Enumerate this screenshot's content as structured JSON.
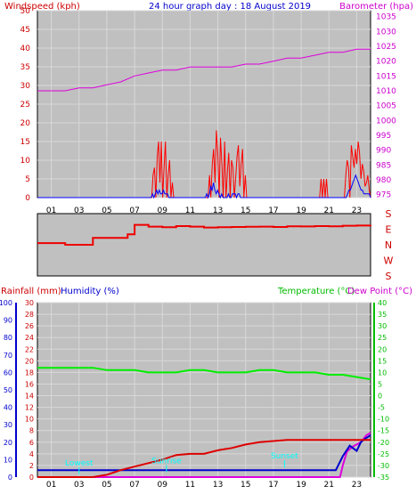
{
  "colors": {
    "plot_bg": "#c0c0c0",
    "grid": "#d8d8d8",
    "wind_speed": "#ff0000",
    "wind_gust": "#0000ff",
    "barometer": "#dd00dd",
    "direction": "#ee0000",
    "temperature": "#00ee00",
    "dew_point": "#dd00dd",
    "rainfall": "#dd0000",
    "humidity": "#0000cc",
    "event": "#00ffff",
    "axis_red": "#cc0000",
    "axis_blue": "#0000cc",
    "axis_purple": "#cc00cc",
    "axis_green": "#00bb00"
  },
  "chart_data": [
    {
      "type": "line",
      "title": "24 hour graph day : 18 August 2019",
      "left_label": "Windspeed (kph)",
      "right_label": "Barometer (hpa)",
      "x_ticks": [
        "01",
        "03",
        "05",
        "07",
        "09",
        "11",
        "13",
        "15",
        "17",
        "19",
        "21",
        "23"
      ],
      "left_ticks": [
        "0",
        "5",
        "10",
        "15",
        "20",
        "25",
        "30",
        "35",
        "40",
        "45",
        "50"
      ],
      "right_ticks": [
        "975",
        "980",
        "985",
        "990",
        "995",
        "1000",
        "1005",
        "1010",
        "1015",
        "1020",
        "1025",
        "1030",
        "1035"
      ],
      "left_lim": [
        0,
        50
      ],
      "right_lim": [
        974,
        1037
      ],
      "hours": [
        0,
        1,
        2,
        3,
        4,
        5,
        6,
        7,
        8,
        9,
        10,
        11,
        12,
        13,
        14,
        15,
        16,
        17,
        18,
        19,
        20,
        21,
        22,
        23,
        24
      ],
      "barometer": [
        1010,
        1010,
        1010,
        1011,
        1011,
        1012,
        1013,
        1015,
        1016,
        1017,
        1017,
        1018,
        1018,
        1018,
        1018,
        1019,
        1019,
        1020,
        1021,
        1021,
        1022,
        1023,
        1023,
        1024,
        1024
      ],
      "wind_speed": [
        0,
        0,
        0,
        0,
        0,
        0,
        0,
        0,
        0,
        0,
        0,
        0,
        0,
        0,
        0,
        0,
        0,
        0,
        0,
        0,
        0,
        0,
        0,
        0,
        0,
        0,
        0,
        0,
        0,
        0,
        0,
        0,
        0,
        0,
        0,
        0,
        0,
        0,
        0,
        0,
        0,
        0,
        0,
        0,
        0,
        0,
        0,
        0,
        0,
        0,
        0,
        0,
        0,
        0,
        0,
        0,
        0,
        0,
        0,
        0,
        0,
        0,
        0,
        0,
        0,
        0,
        0,
        0,
        0,
        0,
        0,
        0,
        0,
        0,
        0,
        0,
        0,
        0,
        0,
        0,
        0,
        0,
        0,
        0,
        6,
        8,
        0,
        11,
        15,
        4,
        15,
        0,
        8,
        15,
        0,
        6,
        10,
        0,
        4,
        0,
        0,
        0,
        0,
        0,
        0,
        0,
        0,
        0,
        0,
        0,
        0,
        0,
        0,
        0,
        0,
        0,
        0,
        0,
        0,
        0,
        0,
        0,
        0,
        0,
        0,
        6,
        0,
        9,
        13,
        4,
        18,
        12,
        0,
        16,
        9,
        0,
        15,
        0,
        7,
        12,
        0,
        10,
        8,
        0,
        5,
        11,
        14,
        3,
        9,
        13,
        0,
        6,
        0,
        0,
        0,
        0,
        0,
        0,
        0,
        0,
        0,
        0,
        0,
        0,
        0,
        0,
        0,
        0,
        0,
        0,
        0,
        0,
        0,
        0,
        0,
        0,
        0,
        0,
        0,
        0,
        0,
        0,
        0,
        0,
        0,
        0,
        0,
        0,
        0,
        0,
        0,
        0,
        0,
        0,
        0,
        0,
        0,
        0,
        0,
        0,
        0,
        0,
        0,
        0,
        0,
        0,
        5,
        0,
        5,
        0,
        5,
        0,
        0,
        0,
        0,
        0,
        0,
        0,
        0,
        0,
        0,
        0,
        0,
        0,
        6,
        10,
        8,
        0,
        14,
        11,
        8,
        13,
        9,
        15,
        12,
        5,
        9,
        7,
        3,
        4,
        6,
        2,
        0
      ],
      "wind_gust": [
        0,
        0,
        0,
        0,
        0,
        0,
        0,
        0,
        0,
        0,
        0,
        0,
        0,
        0,
        0,
        0,
        0,
        0,
        0,
        0,
        0,
        0,
        0,
        0,
        0,
        0,
        0,
        0,
        0,
        0,
        0,
        0,
        0,
        0,
        0,
        0,
        0,
        0,
        0,
        0,
        0,
        0,
        0,
        0,
        0,
        0,
        0,
        0,
        0,
        0,
        0,
        0,
        0,
        0,
        0,
        0,
        0,
        0,
        0,
        0,
        0,
        0,
        0,
        0,
        0,
        0,
        0,
        0,
        0,
        0,
        0,
        0,
        0,
        0,
        0,
        0,
        0,
        0,
        0,
        0,
        0,
        0,
        0,
        0,
        0,
        1,
        0,
        1,
        2,
        1,
        2,
        1,
        1,
        2,
        1,
        1,
        1,
        0,
        0,
        0,
        0,
        0,
        0,
        0,
        0,
        0,
        0,
        0,
        0,
        0,
        0,
        0,
        0,
        0,
        0,
        0,
        0,
        0,
        0,
        0,
        0,
        0,
        0,
        0,
        0,
        1,
        0,
        1,
        3,
        2,
        4,
        2,
        1,
        2,
        1,
        0,
        1,
        0,
        0,
        0,
        0,
        1,
        0,
        0,
        1,
        1,
        1,
        0,
        1,
        1,
        0,
        0,
        0,
        0,
        0,
        0,
        0,
        0,
        0,
        0,
        0,
        0,
        0,
        0,
        0,
        0,
        0,
        0,
        0,
        0,
        0,
        0,
        0,
        0,
        0,
        0,
        0,
        0,
        0,
        0,
        0,
        0,
        0,
        0,
        0,
        0,
        0,
        0,
        0,
        0,
        0,
        0,
        0,
        0,
        0,
        0,
        0,
        0,
        0,
        0,
        0,
        0,
        0,
        0,
        0,
        0,
        0,
        0,
        0,
        0,
        0,
        0,
        0,
        0,
        0,
        0,
        0,
        0,
        0,
        0,
        0,
        0,
        0,
        0,
        0,
        0,
        0,
        0,
        0,
        1,
        2,
        2,
        3,
        4,
        5,
        6,
        5,
        4,
        3,
        2,
        2,
        1,
        1,
        1,
        1,
        1,
        0
      ]
    },
    {
      "type": "line",
      "dir_labels": [
        "S",
        "E",
        "N",
        "W",
        "S"
      ],
      "dir_lim": [
        0,
        360
      ],
      "hours": [
        0,
        1,
        2,
        3,
        4,
        5,
        6,
        6.5,
        7,
        8,
        9,
        10,
        11,
        12,
        13,
        14,
        15,
        16,
        17,
        18,
        19,
        20,
        21,
        22,
        23,
        24
      ],
      "direction": [
        190,
        190,
        180,
        180,
        220,
        220,
        220,
        240,
        295,
        285,
        282,
        288,
        285,
        280,
        282,
        283,
        284,
        285,
        283,
        287,
        286,
        288,
        287,
        290,
        291,
        295
      ]
    },
    {
      "type": "line",
      "rain_label": "Rainfall (mm)",
      "humidity_label": "Humidity (%)",
      "temp_label": "Temperature (°C)",
      "dew_label": "Dew Point (°C)",
      "x_ticks": [
        "01",
        "03",
        "05",
        "07",
        "09",
        "11",
        "13",
        "15",
        "17",
        "19",
        "21",
        "23"
      ],
      "humidity_ticks": [
        "0",
        "10",
        "20",
        "30",
        "40",
        "50",
        "60",
        "70",
        "80",
        "90",
        "100"
      ],
      "rain_ticks": [
        "0",
        "2",
        "4",
        "6",
        "8",
        "10",
        "12",
        "14",
        "16",
        "18",
        "20",
        "22",
        "24",
        "26",
        "28",
        "30"
      ],
      "temp_ticks": [
        "40",
        "35",
        "30",
        "25",
        "20",
        "15",
        "10",
        "5",
        "0",
        "-5",
        "-10",
        "-15",
        "-20",
        "-25",
        "-30",
        "-35"
      ],
      "humidity_lim": [
        0,
        100
      ],
      "rain_lim": [
        0,
        30
      ],
      "temp_lim": [
        -35,
        40
      ],
      "hours": [
        0,
        1,
        2,
        3,
        4,
        5,
        6,
        7,
        8,
        9,
        10,
        11,
        12,
        13,
        14,
        15,
        16,
        17,
        18,
        19,
        20,
        21,
        22,
        23,
        24
      ],
      "temperature": [
        12,
        12,
        12,
        12,
        12,
        11,
        11,
        11,
        10,
        10,
        10,
        11,
        11,
        10,
        10,
        10,
        11,
        11,
        10,
        10,
        10,
        9,
        9,
        8,
        7
      ],
      "dew_point": [
        -35,
        -35,
        -35,
        -35,
        -35,
        -35,
        -35,
        -35,
        -35,
        -35,
        -35,
        -35,
        -35,
        -35,
        -35,
        -35,
        -35,
        -35,
        -35,
        -35,
        -35,
        -35,
        -35,
        -35,
        -35
      ],
      "dew_point_end": {
        "hours": [
          21.8,
          22,
          22.3,
          22.7,
          23,
          23.3,
          23.7,
          24
        ],
        "values": [
          -35,
          -30,
          -24,
          -22,
          -21,
          -20,
          -17,
          -16
        ]
      },
      "rainfall": [
        0,
        0,
        0,
        0,
        0,
        0.4,
        1.2,
        1.8,
        2.4,
        3.0,
        3.8,
        4.0,
        4.0,
        4.6,
        5.0,
        5.6,
        6.0,
        6.2,
        6.4,
        6.4,
        6.4,
        6.4,
        6.4,
        6.4,
        6.4
      ],
      "humidity": [
        4,
        4,
        4,
        4,
        4,
        4,
        4,
        4,
        4,
        4,
        4,
        4,
        4,
        4,
        4,
        4,
        4,
        4,
        4,
        4,
        4,
        4,
        4,
        4,
        4
      ],
      "humidity_end": {
        "hours": [
          21.5,
          22,
          22.5,
          23,
          23.3,
          23.6,
          24
        ],
        "values": [
          4,
          12,
          18,
          15,
          20,
          22,
          24
        ]
      },
      "events": [
        {
          "label": "Lowest",
          "hour": 3.0,
          "value": -30
        },
        {
          "label": "Sunrise",
          "hour": 9.3,
          "value": -29
        },
        {
          "label": "Sunset",
          "hour": 17.8,
          "value": -27
        }
      ]
    }
  ]
}
